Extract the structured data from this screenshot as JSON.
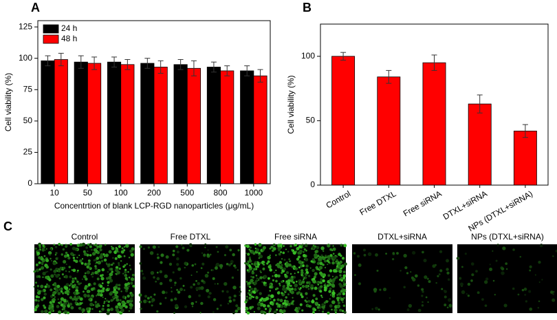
{
  "chart_data": [
    {
      "type": "bar",
      "panel_label": "A",
      "ylabel": "Cell viability (%)",
      "xlabel": "Concentrtion of blank LCP-RGD nanoparticles (μg/mL)",
      "categories": [
        "10",
        "50",
        "100",
        "200",
        "500",
        "800",
        "1000"
      ],
      "series": [
        {
          "name": "24 h",
          "color": "#000000",
          "values": [
            98,
            97,
            97,
            96,
            95,
            93,
            90
          ],
          "errors": [
            4,
            5,
            4,
            4,
            4,
            4,
            4
          ]
        },
        {
          "name": "48 h",
          "color": "#ff0000",
          "values": [
            99,
            96,
            95,
            93,
            92,
            90,
            86
          ],
          "errors": [
            5,
            5,
            4,
            5,
            6,
            4,
            5
          ]
        }
      ],
      "ylim": [
        0,
        130
      ],
      "yticks": [
        0,
        25,
        50,
        75,
        100,
        125
      ],
      "legend": "upper left"
    },
    {
      "type": "bar",
      "panel_label": "B",
      "ylabel": "Cell viability (%)",
      "categories": [
        "Control",
        "Free DTXL",
        "Free siRNA",
        "DTXL+siRNA",
        "NPs (DTXL+siRNA)"
      ],
      "values": [
        100,
        84,
        95,
        63,
        42
      ],
      "errors": [
        3,
        5,
        6,
        7,
        5
      ],
      "color": "#ff0000",
      "ylim": [
        0,
        125
      ],
      "yticks": [
        0,
        50,
        100
      ]
    }
  ],
  "panel_c": {
    "label": "C",
    "images": [
      "Control",
      "Free DTXL",
      "Free siRNA",
      "DTXL+siRNA",
      "NPs (DTXL+siRNA)"
    ]
  }
}
